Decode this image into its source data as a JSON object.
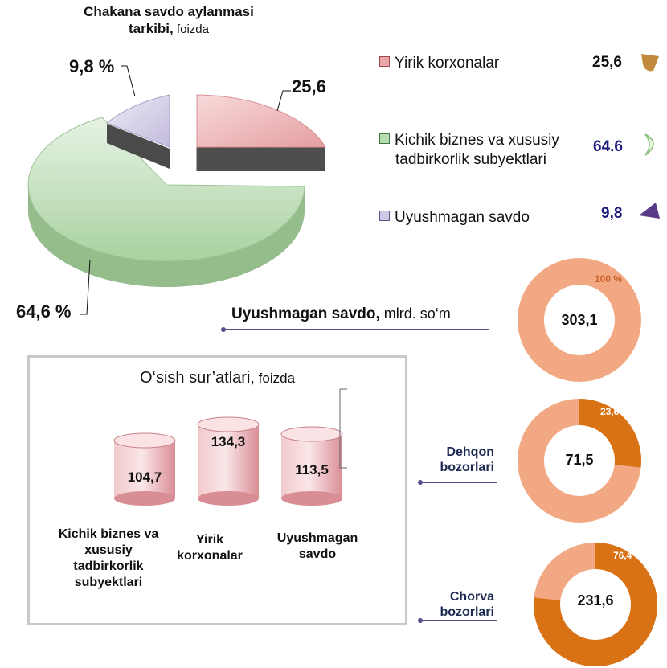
{
  "pie": {
    "title_bold": "Chakana savdo aylanmasi",
    "title_line2_bold": "tarkibi,",
    "title_line2_light": " foizda",
    "labels": [
      "25,6",
      "64,6 %",
      "9,8 %"
    ]
  },
  "legend": [
    {
      "label": "Yirik korxonalar",
      "value": "25,6",
      "color": "#e9a7aa",
      "icon": "leaf-icon"
    },
    {
      "label": "Kichik biznes va xususiy",
      "label2": "tadbirkorlik subyektlari",
      "value": "64.6",
      "color": "#b9dbb3",
      "icon": "crescent-icon"
    },
    {
      "label": "Uyushmagan savdo",
      "value": "9,8",
      "color": "#cfc8e3",
      "icon": "triangle-icon"
    }
  ],
  "growth": {
    "title_bold": "O‘sish sur’atlari,",
    "title_light": " foizda",
    "bars": [
      {
        "value": "104,7",
        "label_lines": [
          "Kichik biznes va",
          "xususiy",
          "tadbirkorlik",
          "subyektlari"
        ]
      },
      {
        "value": "134,3",
        "label_lines": [
          "Yirik",
          "korxonalar"
        ]
      },
      {
        "value": "113,5",
        "label_lines": [
          "Uyushmagan",
          "savdo"
        ]
      }
    ]
  },
  "unorganized": {
    "heading_bold": "Uyushmagan savdo,",
    "heading_light": " mlrd. so‘m"
  },
  "donuts": [
    {
      "center": "303,1",
      "pct_label": "100 %",
      "share": 0,
      "label_lines": []
    },
    {
      "center": "71,5",
      "pct_label": "23,6 %",
      "share": 23.6,
      "label_lines": [
        "Dehqon",
        "bozorlari"
      ]
    },
    {
      "center": "231,6",
      "pct_label": "76,4 %",
      "share": 76.4,
      "label_lines": [
        "Chorva",
        "bozorlari"
      ]
    }
  ],
  "chart_data": [
    {
      "type": "pie",
      "title": "Chakana savdo aylanmasi tarkibi, foizda",
      "categories": [
        "Yirik korxonalar",
        "Kichik biznes va xususiy tadbirkorlik subyektlari",
        "Uyushmagan savdo"
      ],
      "values": [
        25.6,
        64.6,
        9.8
      ],
      "colors": [
        "#e9a7aa",
        "#b9dbb3",
        "#cfc8e3"
      ],
      "legend": "right"
    },
    {
      "type": "bar",
      "title": "O‘sish sur’atlari, foizda",
      "categories": [
        "Kichik biznes va xususiy tadbirkorlik subyektlari",
        "Yirik korxonalar",
        "Uyushmagan savdo"
      ],
      "values": [
        104.7,
        134.3,
        113.5
      ]
    },
    {
      "type": "pie",
      "title": "Uyushmagan savdo, mlrd. so‘m",
      "categories": [
        "Dehqon bozorlari",
        "Chorva bozorlari"
      ],
      "values": [
        71.5,
        231.6
      ],
      "total": 303.1,
      "shares_pct": [
        23.6,
        76.4
      ],
      "colors": [
        "#f0a57e",
        "#d97214"
      ]
    }
  ]
}
